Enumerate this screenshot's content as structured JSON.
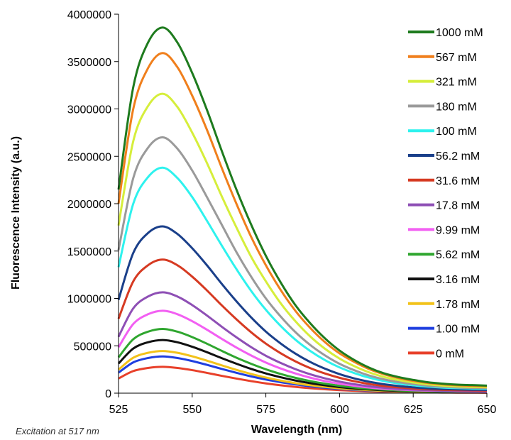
{
  "chart_data": {
    "type": "line",
    "title": "",
    "xlabel": "Wavelength (nm)",
    "ylabel": "Fluorescence Intensity (a.u.)",
    "xlim": [
      525,
      650
    ],
    "ylim": [
      0,
      4000000
    ],
    "xticks": [
      525,
      550,
      575,
      600,
      625,
      650
    ],
    "yticks": [
      0,
      500000,
      1000000,
      1500000,
      2000000,
      2500000,
      3000000,
      3500000,
      4000000
    ],
    "x": [
      525,
      530,
      535,
      540,
      545,
      550,
      555,
      560,
      565,
      570,
      575,
      580,
      585,
      590,
      595,
      600,
      605,
      610,
      615,
      620,
      625,
      630,
      635,
      640,
      645,
      650
    ],
    "series": [
      {
        "name": "1000 mM",
        "color": "#1e7b1e",
        "values": [
          2150000,
          3230000,
          3700000,
          3860000,
          3700000,
          3380000,
          2990000,
          2560000,
          2150000,
          1780000,
          1450000,
          1170000,
          930000,
          740000,
          580000,
          450000,
          350000,
          270000,
          210000,
          170000,
          140000,
          115000,
          100000,
          90000,
          85000,
          80000
        ]
      },
      {
        "name": "567 mM",
        "color": "#f07f1c",
        "values": [
          2000000,
          3000000,
          3430000,
          3590000,
          3440000,
          3140000,
          2780000,
          2380000,
          2000000,
          1650000,
          1350000,
          1090000,
          870000,
          690000,
          540000,
          420000,
          330000,
          255000,
          200000,
          160000,
          130000,
          108000,
          93000,
          83000,
          78000,
          73000
        ]
      },
      {
        "name": "321 mM",
        "color": "#d6ee3b",
        "values": [
          1770000,
          2660000,
          3030000,
          3160000,
          3020000,
          2750000,
          2430000,
          2080000,
          1750000,
          1440000,
          1180000,
          950000,
          760000,
          600000,
          470000,
          365000,
          285000,
          220000,
          172000,
          138000,
          112000,
          93000,
          80000,
          71000,
          66000,
          62000
        ]
      },
      {
        "name": "180 mM",
        "color": "#9a9a9a",
        "values": [
          1510000,
          2270000,
          2590000,
          2700000,
          2580000,
          2350000,
          2070000,
          1780000,
          1490000,
          1230000,
          1000000,
          810000,
          645000,
          510000,
          400000,
          310000,
          242000,
          187000,
          146000,
          117000,
          95000,
          79000,
          68000,
          60000,
          56000,
          53000
        ]
      },
      {
        "name": "100 mM",
        "color": "#2ef2ee",
        "values": [
          1330000,
          2000000,
          2280000,
          2380000,
          2270000,
          2070000,
          1820000,
          1560000,
          1310000,
          1080000,
          880000,
          710000,
          565000,
          447000,
          350000,
          272000,
          212000,
          164000,
          128000,
          102000,
          83000,
          69000,
          59000,
          53000,
          49000,
          46000
        ]
      },
      {
        "name": "56.2 mM",
        "color": "#1a3f8a",
        "values": [
          985000,
          1480000,
          1690000,
          1760000,
          1680000,
          1530000,
          1350000,
          1155000,
          970000,
          800000,
          650000,
          525000,
          418000,
          330000,
          259000,
          201000,
          156000,
          121000,
          95000,
          76000,
          62000,
          51000,
          44000,
          39000,
          36000,
          34000
        ]
      },
      {
        "name": "31.6 mM",
        "color": "#d63a22",
        "values": [
          785000,
          1180000,
          1350000,
          1410000,
          1350000,
          1230000,
          1085000,
          928000,
          780000,
          643000,
          523000,
          422000,
          336000,
          265000,
          208000,
          162000,
          126000,
          97000,
          76000,
          61000,
          50000,
          41000,
          35000,
          31000,
          29000,
          27000
        ]
      },
      {
        "name": "17.8 mM",
        "color": "#8e4fb5",
        "values": [
          595000,
          895000,
          1020000,
          1065000,
          1020000,
          930000,
          820000,
          702000,
          590000,
          486000,
          395000,
          319000,
          254000,
          200000,
          157000,
          122000,
          95000,
          73000,
          57000,
          46000,
          37000,
          31000,
          26000,
          23000,
          21000,
          20000
        ]
      },
      {
        "name": "9.99 mM",
        "color": "#f25ff2",
        "values": [
          485000,
          730000,
          833000,
          870000,
          833000,
          760000,
          670000,
          574000,
          482000,
          398000,
          323000,
          261000,
          208000,
          164000,
          128000,
          100000,
          78000,
          60000,
          47000,
          38000,
          31000,
          26000,
          22000,
          19000,
          17000,
          16000
        ]
      },
      {
        "name": "5.62 mM",
        "color": "#2fa62f",
        "values": [
          378000,
          569000,
          649000,
          678000,
          649000,
          592000,
          522000,
          447000,
          375000,
          310000,
          252000,
          203000,
          162000,
          128000,
          100000,
          78000,
          60000,
          47000,
          37000,
          29000,
          24000,
          20000,
          17000,
          15000,
          14000,
          13000
        ]
      },
      {
        "name": "3.16 mM",
        "color": "#111111",
        "values": [
          313000,
          471000,
          537000,
          561000,
          537000,
          490000,
          432000,
          370000,
          311000,
          256000,
          208000,
          168000,
          134000,
          106000,
          83000,
          64000,
          50000,
          39000,
          30000,
          24000,
          20000,
          17000,
          14000,
          12000,
          11000,
          10500
        ]
      },
      {
        "name": "1.78 mM",
        "color": "#f2c21a",
        "values": [
          248000,
          374000,
          426000,
          445000,
          426000,
          389000,
          343000,
          294000,
          246000,
          203000,
          165000,
          133000,
          106000,
          84000,
          66000,
          51000,
          40000,
          31000,
          24000,
          19000,
          16000,
          13000,
          11000,
          10000,
          9000,
          8500
        ]
      },
      {
        "name": "1.00 mM",
        "color": "#1f3fe0",
        "values": [
          216000,
          325000,
          371000,
          388000,
          371000,
          339000,
          299000,
          256000,
          215000,
          177000,
          144000,
          116000,
          93000,
          73000,
          57000,
          45000,
          35000,
          27000,
          21000,
          17000,
          14000,
          11500,
          10000,
          9000,
          8000,
          7500
        ]
      },
      {
        "name": "0 mM",
        "color": "#e8402a",
        "values": [
          155000,
          233000,
          266000,
          278000,
          266000,
          243000,
          214000,
          183000,
          154000,
          127000,
          103000,
          83000,
          66000,
          52000,
          41000,
          32000,
          25000,
          19000,
          15000,
          12000,
          10000,
          8000,
          7000,
          6000,
          5500,
          5000
        ]
      }
    ]
  },
  "caption": "Excitation at 517 nm"
}
